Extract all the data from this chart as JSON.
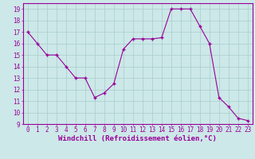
{
  "hours": [
    0,
    1,
    2,
    3,
    4,
    5,
    6,
    7,
    8,
    9,
    10,
    11,
    12,
    13,
    14,
    15,
    16,
    17,
    18,
    19,
    20,
    21,
    22,
    23
  ],
  "values": [
    17,
    16,
    15,
    15,
    14,
    13,
    13,
    11.3,
    11.7,
    12.5,
    15.5,
    16.4,
    16.4,
    16.4,
    16.5,
    19,
    19,
    19,
    17.5,
    16,
    11.3,
    10.5,
    9.5,
    9.3
  ],
  "line_color": "#990099",
  "marker_color": "#990099",
  "bg_color": "#cce8e8",
  "grid_color": "#aacccc",
  "xlabel": "Windchill (Refroidissement éolien,°C)",
  "ylim": [
    9,
    19.5
  ],
  "yticks": [
    9,
    10,
    11,
    12,
    13,
    14,
    15,
    16,
    17,
    18,
    19
  ],
  "xticks": [
    0,
    1,
    2,
    3,
    4,
    5,
    6,
    7,
    8,
    9,
    10,
    11,
    12,
    13,
    14,
    15,
    16,
    17,
    18,
    19,
    20,
    21,
    22,
    23
  ],
  "xtick_labels": [
    "0",
    "1",
    "2",
    "3",
    "4",
    "5",
    "6",
    "7",
    "8",
    "9",
    "10",
    "11",
    "12",
    "13",
    "14",
    "15",
    "16",
    "17",
    "18",
    "19",
    "20",
    "21",
    "22",
    "23"
  ],
  "tick_fontsize": 5.5,
  "xlabel_fontsize": 6.5,
  "tick_color": "#990099",
  "spine_color": "#990099"
}
